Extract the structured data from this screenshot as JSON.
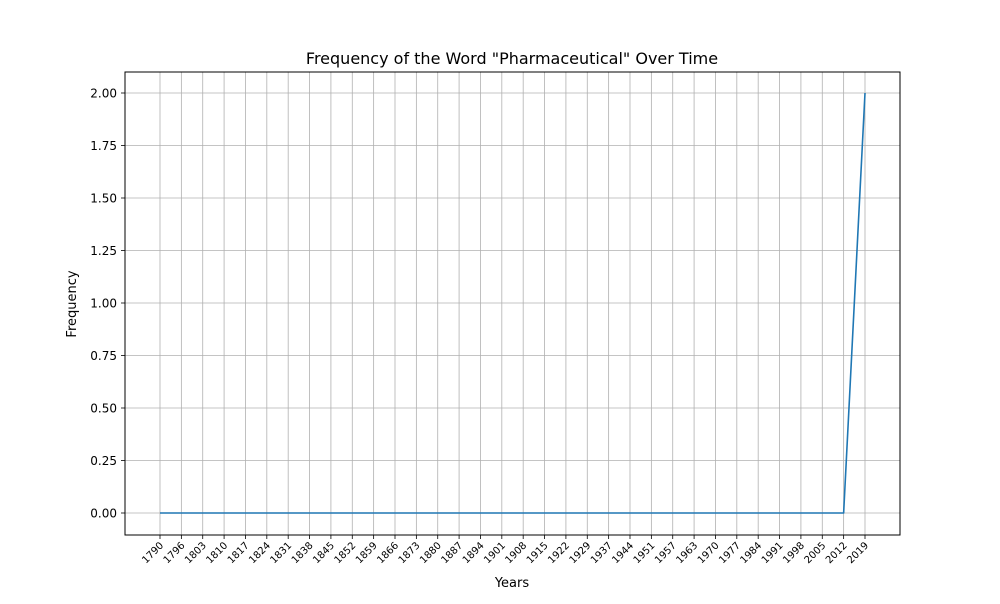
{
  "chart_data": {
    "type": "line",
    "title": "Frequency of the Word \"Pharmaceutical\" Over Time",
    "xlabel": "Years",
    "ylabel": "Frequency",
    "x": [
      "1790",
      "1796",
      "1803",
      "1810",
      "1817",
      "1824",
      "1831",
      "1838",
      "1845",
      "1852",
      "1859",
      "1866",
      "1873",
      "1880",
      "1887",
      "1894",
      "1901",
      "1908",
      "1915",
      "1922",
      "1929",
      "1937",
      "1944",
      "1951",
      "1957",
      "1963",
      "1970",
      "1977",
      "1984",
      "1991",
      "1998",
      "2005",
      "2012",
      "2019"
    ],
    "series": [
      {
        "values": [
          0,
          0,
          0,
          0,
          0,
          0,
          0,
          0,
          0,
          0,
          0,
          0,
          0,
          0,
          0,
          0,
          0,
          0,
          0,
          0,
          0,
          0,
          0,
          0,
          0,
          0,
          0,
          0,
          0,
          0,
          0,
          0,
          0,
          2
        ]
      }
    ],
    "ylim": [
      -0.1,
      2.1
    ],
    "yticks": [
      "0.00",
      "0.25",
      "0.50",
      "0.75",
      "1.00",
      "1.25",
      "1.50",
      "1.75",
      "2.00"
    ],
    "grid": true,
    "colors": {
      "line": "#1f77b4",
      "grid": "#b0b0b0"
    }
  }
}
